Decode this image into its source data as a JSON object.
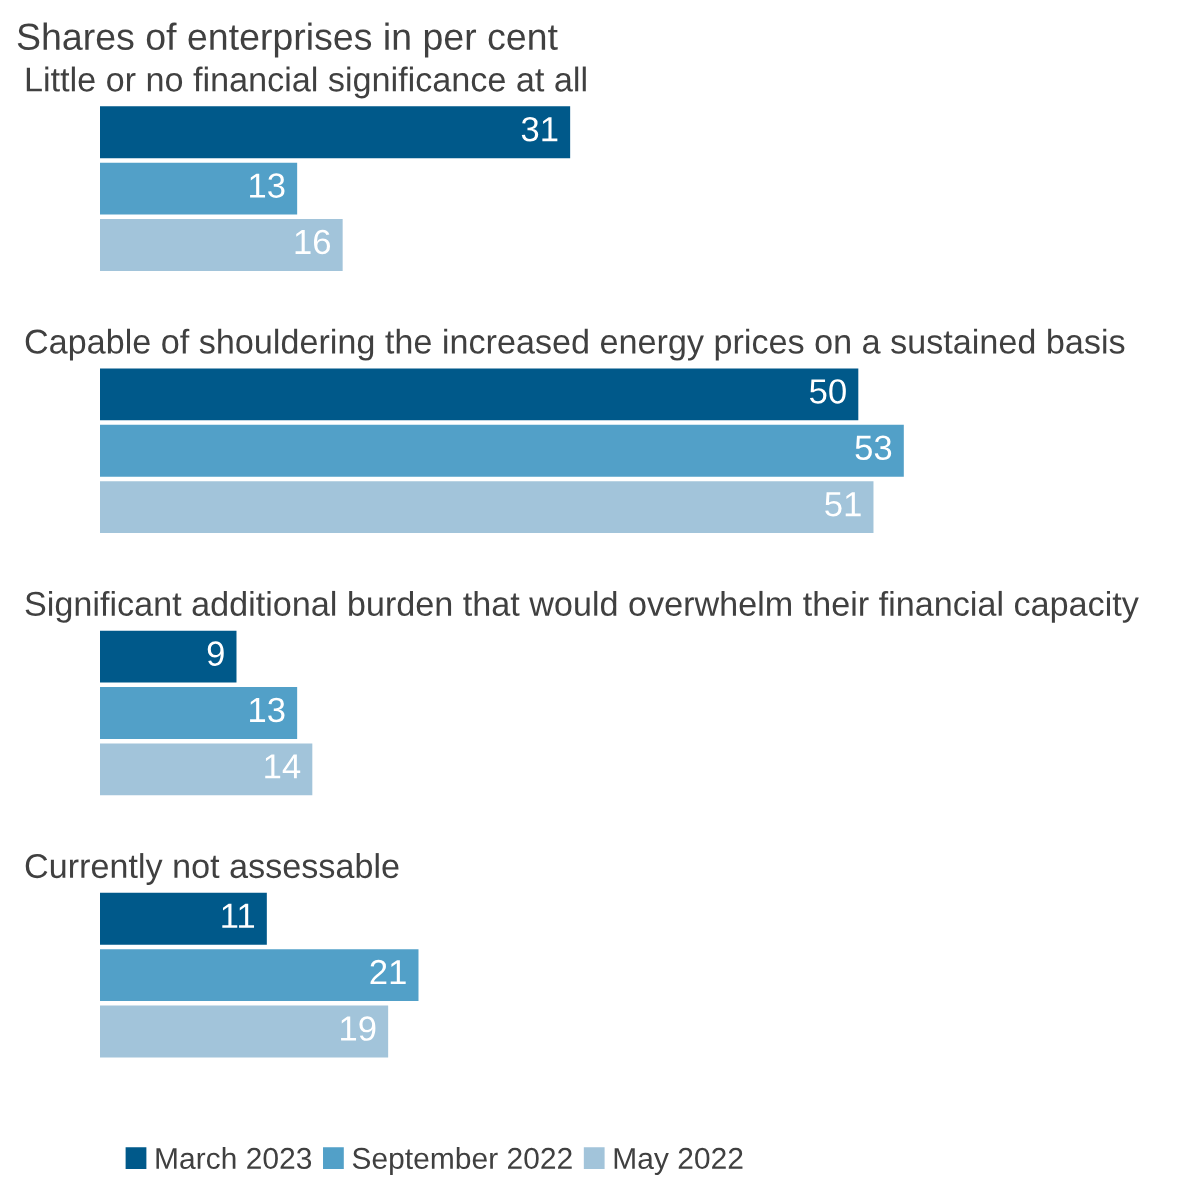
{
  "chart_data": {
    "type": "bar",
    "orientation": "horizontal",
    "title": "Shares of enterprises in per cent",
    "categories": [
      "Little or no financial significance at all",
      "Capable of shouldering the increased energy prices on a sustained basis",
      "Significant additional burden that would overwhelm their financial capacity",
      "Currently not assessable"
    ],
    "series": [
      {
        "name": "March 2023",
        "color": "#00598a",
        "values": [
          31,
          50,
          9,
          11
        ]
      },
      {
        "name": "September 2022",
        "color": "#52a0c8",
        "values": [
          13,
          53,
          13,
          21
        ]
      },
      {
        "name": "May 2022",
        "color": "#a2c4da",
        "values": [
          16,
          51,
          14,
          19
        ]
      }
    ],
    "data_labels": true,
    "legend": "bottom"
  }
}
